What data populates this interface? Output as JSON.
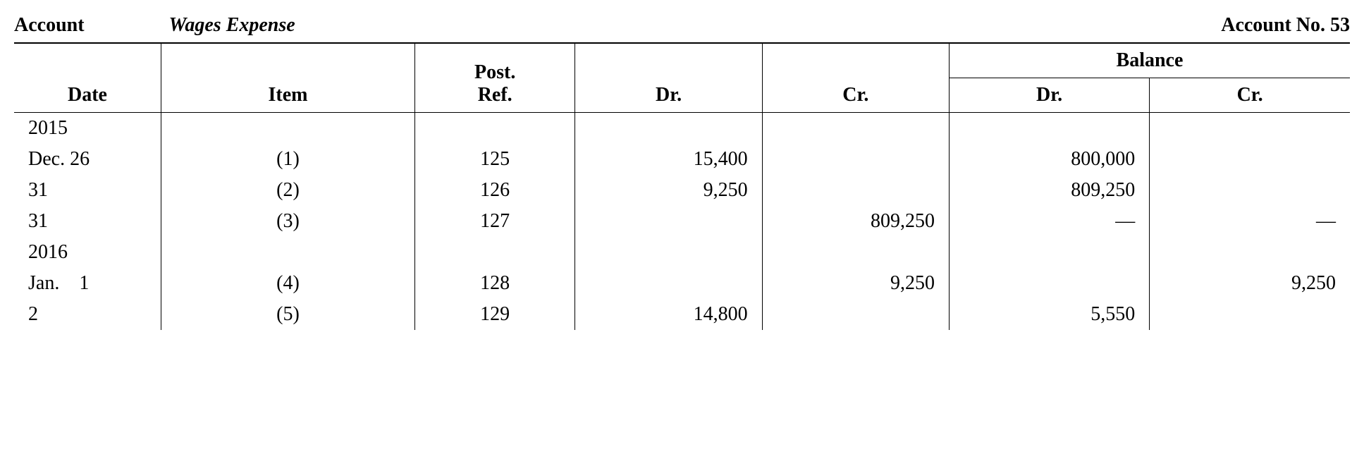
{
  "header": {
    "account_label": "Account",
    "account_name": "Wages Expense",
    "account_no_label": "Account No. 53"
  },
  "columns": {
    "date": "Date",
    "item": "Item",
    "post_ref": "Post.\nRef.",
    "dr": "Dr.",
    "cr": "Cr.",
    "balance": "Balance",
    "bal_dr": "Dr.",
    "bal_cr": "Cr."
  },
  "table": {
    "type": "ledger-table",
    "background_color": "#ffffff",
    "text_color": "#000000",
    "rule_color": "#000000",
    "font_family": "serif",
    "header_fontsize_pt": 21,
    "body_fontsize_pt": 21,
    "col_widths_pct": [
      11,
      19,
      12,
      14,
      14,
      15,
      15
    ],
    "col_align": [
      "left",
      "center",
      "center",
      "right",
      "right",
      "right",
      "right"
    ]
  },
  "rows": [
    {
      "kind": "year",
      "date": "2015",
      "item": "",
      "post_ref": "",
      "dr": "",
      "cr": "",
      "bal_dr": "",
      "bal_cr": ""
    },
    {
      "kind": "entry",
      "date": "Dec. 26",
      "item": "(1)",
      "post_ref": "125",
      "dr": "15,400",
      "cr": "",
      "bal_dr": "800,000",
      "bal_cr": ""
    },
    {
      "kind": "entry",
      "date": "31",
      "indent": true,
      "item": "(2)",
      "post_ref": "126",
      "dr": "9,250",
      "cr": "",
      "bal_dr": "809,250",
      "bal_cr": ""
    },
    {
      "kind": "entry",
      "date": "31",
      "indent": true,
      "item": "(3)",
      "post_ref": "127",
      "dr": "",
      "cr": "809,250",
      "bal_dr": "—",
      "bal_cr": "—"
    },
    {
      "kind": "year",
      "date": "2016",
      "item": "",
      "post_ref": "",
      "dr": "",
      "cr": "",
      "bal_dr": "",
      "bal_cr": ""
    },
    {
      "kind": "entry",
      "date": "Jan.    1",
      "item": "(4)",
      "post_ref": "128",
      "dr": "",
      "cr": "9,250",
      "bal_dr": "",
      "bal_cr": "9,250"
    },
    {
      "kind": "entry",
      "date": "2",
      "indent": true,
      "item": "(5)",
      "post_ref": "129",
      "dr": "14,800",
      "cr": "",
      "bal_dr": "5,550",
      "bal_cr": ""
    }
  ]
}
